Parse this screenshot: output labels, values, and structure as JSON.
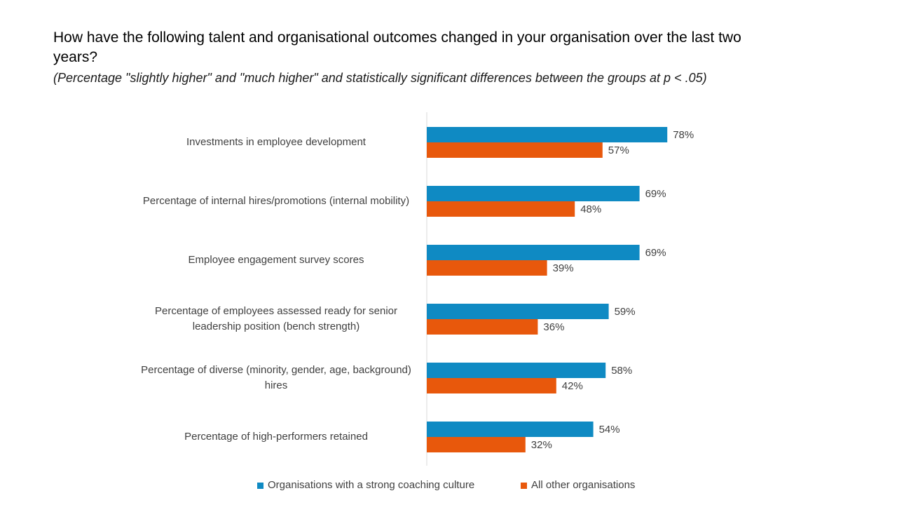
{
  "title": "How have the following talent and organisational outcomes changed in your organisation over the last two years?",
  "subtitle": "(Percentage \"slightly higher\" and \"much higher\" and statistically significant differences between the groups at p < .05)",
  "colors": {
    "series_1": "#0f8ac3",
    "series_2": "#e8580c",
    "axis": "#d9d9d9"
  },
  "chart_data": {
    "type": "bar",
    "orientation": "horizontal",
    "categories": [
      "Investments in employee development",
      "Percentage of internal hires/promotions (internal mobility)",
      "Employee engagement survey scores",
      "Percentage of employees assessed ready for senior leadership position (bench strength)",
      "Percentage of diverse (minority, gender, age, background) hires",
      "Percentage of high-performers retained"
    ],
    "series": [
      {
        "name": "Organisations with a strong coaching culture",
        "values": [
          78,
          69,
          69,
          59,
          58,
          54
        ]
      },
      {
        "name": "All other organisations",
        "values": [
          57,
          48,
          39,
          36,
          42,
          32
        ]
      }
    ],
    "value_format": "percent",
    "xlim": [
      0,
      100
    ],
    "legend_position": "bottom",
    "grid": false
  }
}
